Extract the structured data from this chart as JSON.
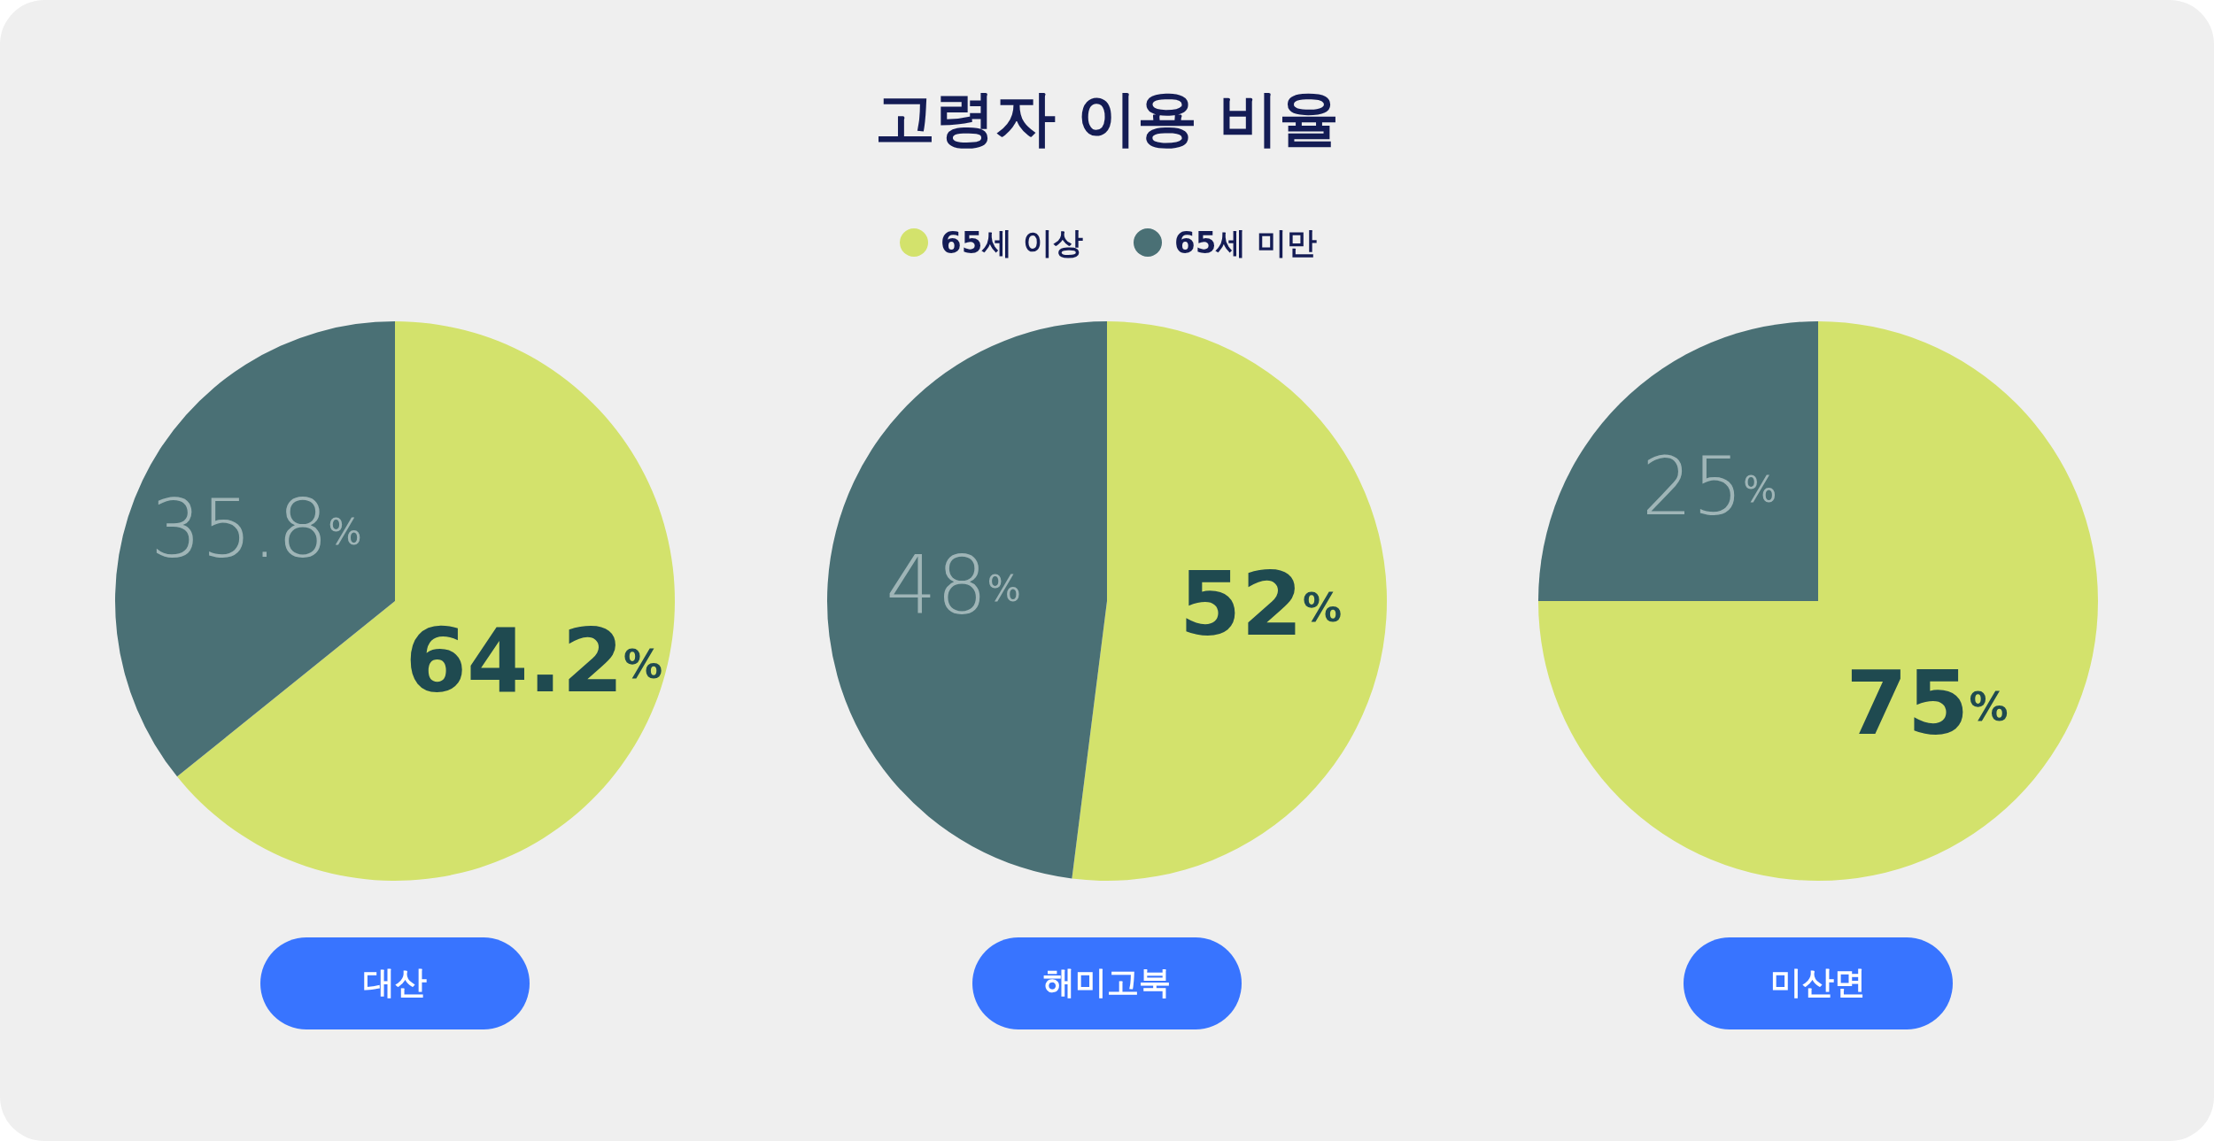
{
  "chart_data": [
    {
      "type": "pie",
      "xlabel": "대산",
      "categories": [
        null,
        null
      ],
      "values": [
        64.2,
        35.8
      ],
      "colors": [
        "#d3e26c",
        "#4a7075"
      ],
      "value_labels": [
        "64.2%",
        "35.8%"
      ]
    },
    {
      "type": "pie",
      "title": "고령자 이용 비율",
      "legend": "top",
      "xlabel": "해미고북",
      "categories": [
        "65세 이상",
        "65세 미만"
      ],
      "values": [
        52,
        48
      ],
      "colors": [
        "#d3e26c",
        "#4a7075"
      ],
      "value_labels": [
        "52%",
        "48%"
      ]
    },
    {
      "type": "pie",
      "xlabel": "미산면",
      "categories": [
        null,
        null
      ],
      "values": [
        75,
        25
      ],
      "colors": [
        "#d3e26c",
        "#4a7075"
      ],
      "value_labels": [
        "75%",
        "25%"
      ]
    }
  ]
}
